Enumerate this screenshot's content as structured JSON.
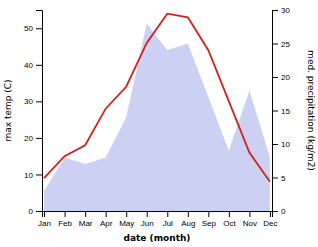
{
  "chart_data": {
    "type": "line",
    "categories": [
      "Jan",
      "Feb",
      "Mar",
      "Apr",
      "May",
      "Jun",
      "Jul",
      "Aug",
      "Sep",
      "Oct",
      "Nov",
      "Dec"
    ],
    "xlabel": "date (month)",
    "ylabel": "max temp (C)",
    "y2label": "med. precipitation (kg/m2)",
    "ylim": [
      0,
      55
    ],
    "yticks": [
      0,
      10,
      20,
      30,
      40,
      50
    ],
    "y2lim": [
      0,
      30
    ],
    "y2ticks": [
      0,
      5,
      10,
      15,
      20,
      25,
      30
    ],
    "series": [
      {
        "type": "area",
        "axis": "y2",
        "color": "#b0b8ee",
        "values": [
          3,
          8,
          7,
          8,
          14,
          28,
          24,
          25,
          17,
          9,
          18,
          8
        ]
      },
      {
        "type": "line",
        "color": "#cc2222",
        "values": [
          9,
          15,
          18,
          28,
          34,
          46,
          54,
          53,
          44,
          30,
          16,
          8
        ]
      }
    ]
  }
}
